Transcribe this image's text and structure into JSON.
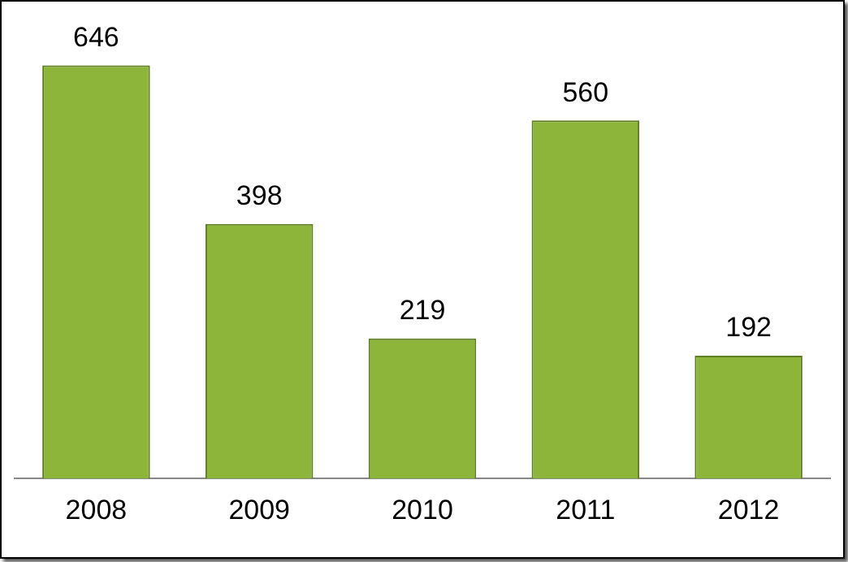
{
  "chart_data": {
    "type": "bar",
    "categories": [
      "2008",
      "2009",
      "2010",
      "2011",
      "2012"
    ],
    "values": [
      646,
      398,
      219,
      560,
      192
    ],
    "color": "#8db53a",
    "data_labels": true,
    "grid": false,
    "legend": false
  }
}
